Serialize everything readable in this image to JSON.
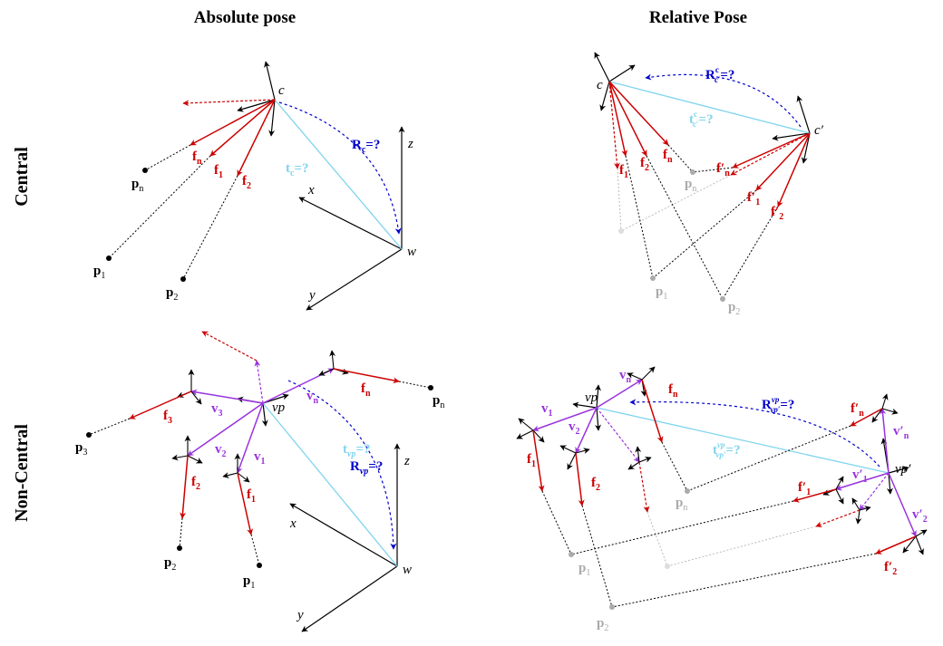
{
  "headers": {
    "absolute": "Absolute pose",
    "relative": "Relative Pose"
  },
  "rows": {
    "central": "Central",
    "noncentral": "Non-Central"
  },
  "colors": {
    "black": "#000000",
    "red": "#cc0000",
    "purple": "#9933dd",
    "blue": "#0000cc",
    "cyan": "#7fd4ee",
    "gray": "#aaaaaa",
    "lightgray": "#cccccc"
  },
  "labels": {
    "tl": {
      "c": "c",
      "z": "z",
      "x": "x",
      "y": "y",
      "w": "w",
      "R": "R",
      "Rsub": "c",
      "Rq": "=?",
      "t": "t",
      "tsub": "c",
      "tq": "=?",
      "fn": "f",
      "fnsub": "n",
      "f1": "f",
      "f1sub": "1",
      "f2": "f",
      "f2sub": "2",
      "pn": "p",
      "pnsub": "n",
      "p1": "p",
      "p1sub": "1",
      "p2": "p",
      "p2sub": "2"
    },
    "tr": {
      "c": "c",
      "cp": "c′",
      "R": "R",
      "Rsup": "c",
      "Rsub": "c′",
      "Rq": "=?",
      "t": "t",
      "tsup": "c",
      "tsub": "c′",
      "tq": "=?",
      "f1": "f",
      "f1sub": "1",
      "f2": "f",
      "f2sub": "2",
      "fn": "f",
      "fnsub": "n",
      "f1p": "f′",
      "f1psub": "1",
      "f2p": "f′",
      "f2psub": "2",
      "fnp": "f′",
      "fnpsub": "n",
      "pn": "p",
      "pnsub": "n",
      "p1": "p",
      "p1sub": "1",
      "p2": "p",
      "p2sub": "2"
    },
    "bl": {
      "vp": "vp",
      "z": "z",
      "x": "x",
      "y": "y",
      "w": "w",
      "R": "R",
      "Rsub": "vp",
      "Rq": "=?",
      "t": "t",
      "tsub": "vp",
      "tq": "=?",
      "v1": "v",
      "v1sub": "1",
      "v2": "v",
      "v2sub": "2",
      "v3": "v",
      "v3sub": "3",
      "vn": "v",
      "vnsub": "n",
      "f1": "f",
      "f1sub": "1",
      "f2": "f",
      "f2sub": "2",
      "f3": "f",
      "f3sub": "3",
      "fn": "f",
      "fnsub": "n",
      "p1": "p",
      "p1sub": "1",
      "p2": "p",
      "p2sub": "2",
      "p3": "p",
      "p3sub": "3",
      "pn": "p",
      "pnsub": "n"
    },
    "br": {
      "vp": "vp",
      "vpp": "vp′",
      "R": "R",
      "Rsup": "vp",
      "Rsub": "vp′",
      "Rq": "=?",
      "t": "t",
      "tsup": "vp",
      "tsub": "vp′",
      "tq": "=?",
      "v1": "v",
      "v1sub": "1",
      "v2": "v",
      "v2sub": "2",
      "vn": "v",
      "vnsub": "n",
      "fn": "f",
      "fnsub": "n",
      "f1": "f",
      "f1sub": "1",
      "f2": "f",
      "f2sub": "2",
      "fnp": "f′",
      "fnpsub": "n",
      "vnp": "v′",
      "vnpsub": "n",
      "v1p": "v′",
      "v1psub": "1",
      "f1p": "f′",
      "f1psub": "1",
      "v2p": "v′",
      "v2psub": "2",
      "f2p": "f′",
      "f2psub": "2",
      "pn": "p",
      "pnsub": "n",
      "p1": "p",
      "p1sub": "1",
      "p2": "p",
      "p2sub": "2"
    }
  }
}
